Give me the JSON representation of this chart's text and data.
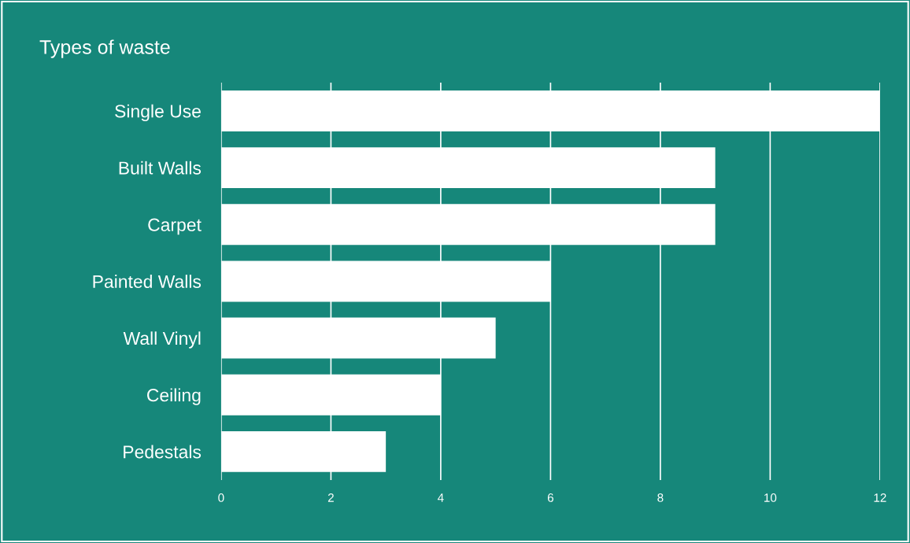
{
  "chart_data": {
    "type": "bar",
    "orientation": "horizontal",
    "title": "Types of waste",
    "categories": [
      "Single Use",
      "Built Walls",
      "Carpet",
      "Painted Walls",
      "Wall Vinyl",
      "Ceiling",
      "Pedestals"
    ],
    "values": [
      12,
      9,
      9,
      6,
      5,
      4,
      3
    ],
    "color": "#ffffff",
    "xlim": [
      0,
      12
    ],
    "xticks": [
      0,
      2,
      4,
      6,
      8,
      10,
      12
    ],
    "grid": "x",
    "legend": false
  }
}
